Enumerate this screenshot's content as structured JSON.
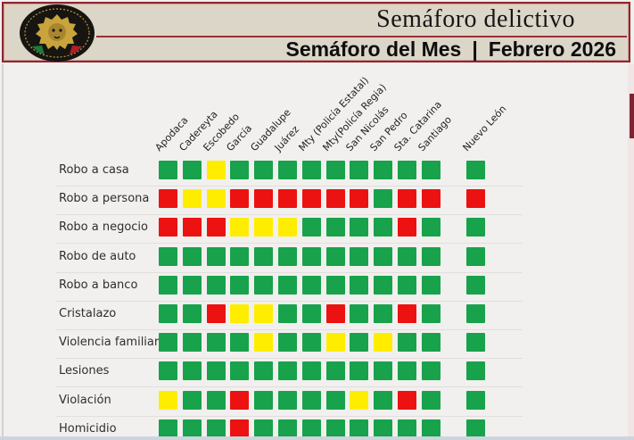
{
  "header": {
    "title": "Semáforo delictivo",
    "subtitle_left": "Semáforo del Mes",
    "subtitle_separator": "|",
    "subtitle_right": "Febrero  2026"
  },
  "colors": {
    "header_background": "#dcd6c8",
    "header_border": "#8f2531",
    "page_background": "#f1f0ee",
    "scrollbar_thumb": "#7d2434",
    "green": "#18a24b",
    "yellow": "#ffed00",
    "red": "#ec1212"
  },
  "chart_data": {
    "type": "heatmap",
    "title": "Semáforo del Mes | Febrero 2026",
    "legend_note": "traffic-light status matrix: green = ok, yellow = warning, red = alert",
    "x_categories": [
      "Apodaca",
      "Cadereyta",
      "Escobedo",
      "García",
      "Guadalupe",
      "Juárez",
      "Mty (Policía Estatal)",
      "Mty(Policía Regia)",
      "San Nicolás",
      "San Pedro",
      "Sta. Catarina",
      "Santiago"
    ],
    "x_extra_category": "Nuevo León",
    "y_categories": [
      "Robo a casa",
      "Robo a persona",
      "Robo a negocio",
      "Robo de auto",
      "Robo a banco",
      "Cristalazo",
      "Violencia familiar",
      "Lesiones",
      "Violación",
      "Homicidio"
    ],
    "rows": [
      {
        "label": "Robo a casa",
        "cells": [
          "green",
          "green",
          "yellow",
          "green",
          "green",
          "green",
          "green",
          "green",
          "green",
          "green",
          "green",
          "green"
        ],
        "nuevo_leon": "green"
      },
      {
        "label": "Robo a persona",
        "cells": [
          "red",
          "yellow",
          "yellow",
          "red",
          "red",
          "red",
          "red",
          "red",
          "red",
          "green",
          "red",
          "red"
        ],
        "nuevo_leon": "red"
      },
      {
        "label": "Robo a negocio",
        "cells": [
          "red",
          "red",
          "red",
          "yellow",
          "yellow",
          "yellow",
          "green",
          "green",
          "green",
          "green",
          "red",
          "green"
        ],
        "nuevo_leon": "green"
      },
      {
        "label": "Robo de auto",
        "cells": [
          "green",
          "green",
          "green",
          "green",
          "green",
          "green",
          "green",
          "green",
          "green",
          "green",
          "green",
          "green"
        ],
        "nuevo_leon": "green"
      },
      {
        "label": "Robo a banco",
        "cells": [
          "green",
          "green",
          "green",
          "green",
          "green",
          "green",
          "green",
          "green",
          "green",
          "green",
          "green",
          "green"
        ],
        "nuevo_leon": "green"
      },
      {
        "label": "Cristalazo",
        "cells": [
          "green",
          "green",
          "red",
          "yellow",
          "yellow",
          "green",
          "green",
          "red",
          "green",
          "green",
          "red",
          "green"
        ],
        "nuevo_leon": "green"
      },
      {
        "label": "Violencia familiar",
        "cells": [
          "green",
          "green",
          "green",
          "green",
          "yellow",
          "green",
          "green",
          "yellow",
          "green",
          "yellow",
          "green",
          "green"
        ],
        "nuevo_leon": "green"
      },
      {
        "label": "Lesiones",
        "cells": [
          "green",
          "green",
          "green",
          "green",
          "green",
          "green",
          "green",
          "green",
          "green",
          "green",
          "green",
          "green"
        ],
        "nuevo_leon": "green"
      },
      {
        "label": "Violación",
        "cells": [
          "yellow",
          "green",
          "green",
          "red",
          "green",
          "green",
          "green",
          "green",
          "yellow",
          "green",
          "red",
          "green"
        ],
        "nuevo_leon": "green"
      },
      {
        "label": "Homicidio",
        "cells": [
          "green",
          "green",
          "green",
          "red",
          "green",
          "green",
          "green",
          "green",
          "green",
          "green",
          "green",
          "green"
        ],
        "nuevo_leon": "green"
      }
    ]
  }
}
